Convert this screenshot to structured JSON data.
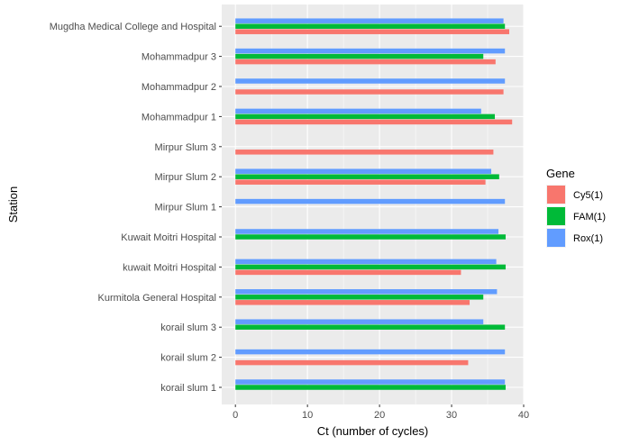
{
  "chart_data": {
    "type": "bar",
    "orientation": "horizontal",
    "xlabel": "Ct (number of cycles)",
    "ylabel": "Station",
    "xlim": [
      -1.9,
      40.0
    ],
    "xticks": [
      0,
      10,
      20,
      30,
      40
    ],
    "grid": true,
    "legend": {
      "title": "Gene",
      "position": "right"
    },
    "categories": [
      "korail slum 1",
      "korail slum 2",
      "korail slum 3",
      "Kurmitola General Hospital",
      "kuwait Moitri Hospital",
      "Kuwait Moitri Hospital",
      "Mirpur Slum 1",
      "Mirpur Slum 2",
      "Mirpur Slum 3",
      "Mohammadpur 1",
      "Mohammadpur 2",
      "Mohammadpur 3",
      "Mugdha Medical College and Hospital"
    ],
    "series": [
      {
        "name": "Cy5(1)",
        "color": "#f8766d",
        "values": [
          null,
          32.3,
          null,
          32.5,
          31.3,
          null,
          null,
          34.7,
          35.8,
          38.4,
          37.2,
          36.1,
          38.0
        ]
      },
      {
        "name": "FAM(1)",
        "color": "#00ba38",
        "values": [
          37.5,
          null,
          37.4,
          34.4,
          37.5,
          37.5,
          null,
          36.6,
          null,
          36.0,
          null,
          34.4,
          37.4
        ]
      },
      {
        "name": "Rox(1)",
        "color": "#619cff",
        "values": [
          37.4,
          37.4,
          34.4,
          36.3,
          36.2,
          36.5,
          37.4,
          35.5,
          null,
          34.1,
          37.4,
          37.4,
          37.2
        ]
      }
    ]
  }
}
